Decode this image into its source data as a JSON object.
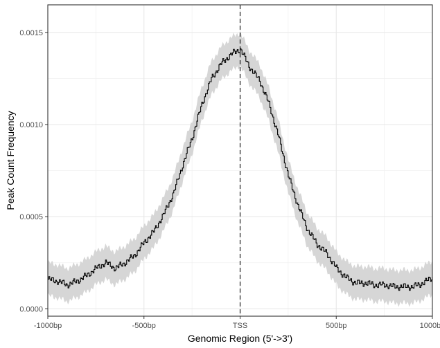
{
  "chart_data": {
    "type": "line",
    "title": "",
    "xlabel": "Genomic Region (5'->3')",
    "ylabel": "Peak Count Frequency",
    "xlim": [
      -1000,
      1000
    ],
    "ylim": [
      -4e-05,
      0.00165
    ],
    "x_ticks": [
      {
        "value": -1000,
        "label": "-1000bp"
      },
      {
        "value": -500,
        "label": "-500bp"
      },
      {
        "value": 0,
        "label": "TSS"
      },
      {
        "value": 500,
        "label": "500bp"
      },
      {
        "value": 1000,
        "label": "1000bp"
      }
    ],
    "y_ticks": [
      {
        "value": 0.0,
        "label": "0.0000"
      },
      {
        "value": 0.0005,
        "label": "0.0005"
      },
      {
        "value": 0.001,
        "label": "0.0010"
      },
      {
        "value": 0.0015,
        "label": "0.0015"
      }
    ],
    "grid": true,
    "vline": {
      "x": 0,
      "style": "dashed"
    },
    "series": [
      {
        "x": [
          -1000,
          -950,
          -900,
          -850,
          -800,
          -750,
          -700,
          -650,
          -600,
          -550,
          -500,
          -450,
          -400,
          -350,
          -300,
          -250,
          -200,
          -150,
          -100,
          -50,
          0,
          50,
          100,
          150,
          200,
          250,
          300,
          350,
          400,
          450,
          500,
          550,
          600,
          650,
          700,
          750,
          800,
          850,
          900,
          950,
          1000
        ],
        "y": [
          0.00016,
          0.00015,
          0.00013,
          0.00015,
          0.00018,
          0.00022,
          0.00025,
          0.00022,
          0.00025,
          0.00029,
          0.00036,
          0.00042,
          0.00051,
          0.00062,
          0.00078,
          0.00093,
          0.00111,
          0.00125,
          0.00133,
          0.00138,
          0.00141,
          0.00131,
          0.00124,
          0.00111,
          0.00093,
          0.00072,
          0.00056,
          0.00043,
          0.00035,
          0.0003,
          0.00022,
          0.00017,
          0.00014,
          0.00014,
          0.00013,
          0.00013,
          0.00012,
          0.00012,
          0.00012,
          0.00014,
          0.00017
        ],
        "ci_half_width": 9e-05,
        "color": "#000000",
        "band_color": "#d6d6d6"
      }
    ]
  }
}
